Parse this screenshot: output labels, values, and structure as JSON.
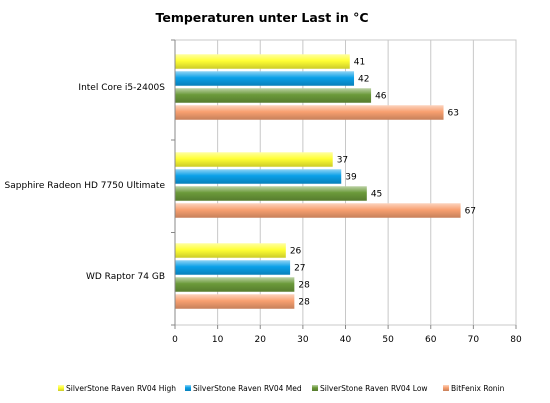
{
  "chart_data": {
    "type": "bar",
    "orientation": "horizontal",
    "title": "Temperaturen unter Last in °C",
    "xlabel": "",
    "ylabel": "",
    "categories": [
      "Intel Core i5-2400S",
      "Sapphire Radeon HD 7750 Ultimate",
      "WD Raptor 74 GB"
    ],
    "series": [
      {
        "name": "SilverStone Raven RV04 High",
        "color": "#ffff33",
        "values": [
          41,
          37,
          26
        ]
      },
      {
        "name": "SilverStone Raven RV04 Med",
        "color": "#0aa0e8",
        "values": [
          42,
          39,
          27
        ]
      },
      {
        "name": "SilverStone Raven RV04 Low",
        "color": "#6b9a3a",
        "values": [
          46,
          45,
          28
        ]
      },
      {
        "name": "BitFenix Ronin",
        "color": "#f8a070",
        "values": [
          63,
          67,
          28
        ]
      }
    ],
    "xlim": [
      0,
      80
    ],
    "xticks": [
      0,
      10,
      20,
      30,
      40,
      50,
      60,
      70,
      80
    ],
    "grid": true,
    "legend": "bottom"
  }
}
